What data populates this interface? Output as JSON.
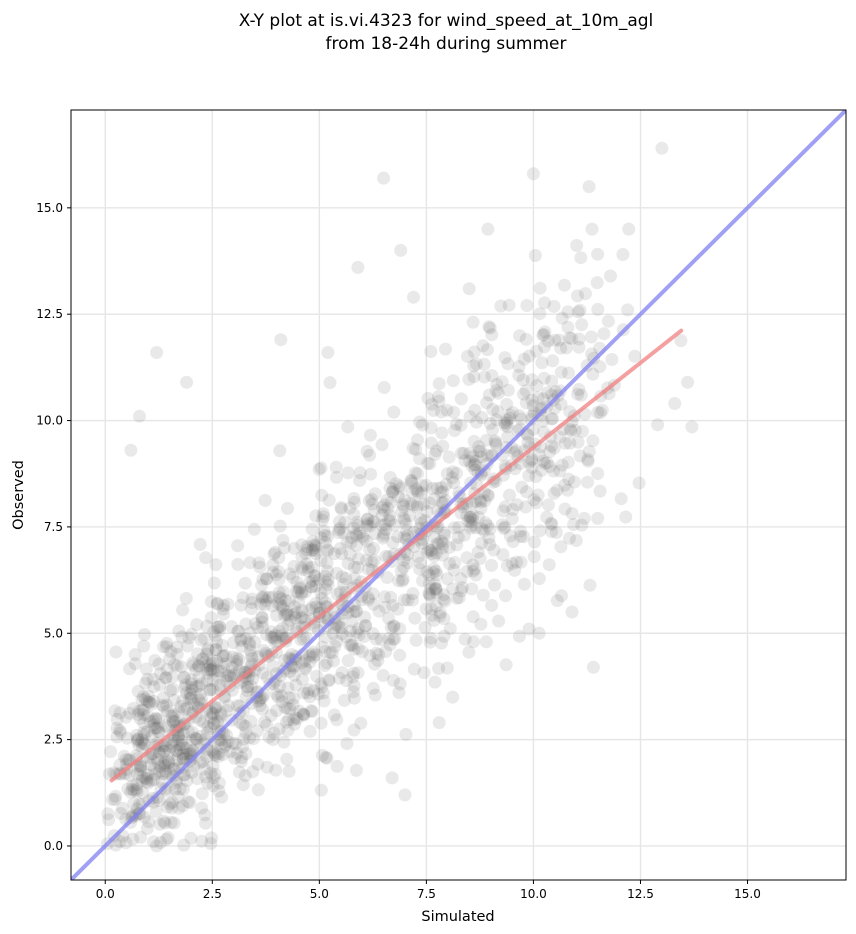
{
  "chart_data": {
    "type": "scatter",
    "title": "X-Y plot at is.vi.4323 for wind_speed_at_10m_agl",
    "subtitle": "from 18-24h during summer",
    "xlabel": "Simulated",
    "ylabel": "Observed",
    "xlim": [
      -0.8,
      17.3
    ],
    "ylim": [
      -0.8,
      17.3
    ],
    "xticks": [
      "0.0",
      "2.5",
      "5.0",
      "7.5",
      "10.0",
      "12.5",
      "15.0"
    ],
    "yticks": [
      "0.0",
      "2.5",
      "5.0",
      "7.5",
      "10.0",
      "12.5",
      "15.0"
    ],
    "grid": true,
    "point_count": 1600,
    "fit_line": {
      "slope": 0.795,
      "intercept": 1.42,
      "x_range": [
        0.15,
        13.45
      ]
    },
    "identity_line": true,
    "notable_points": [
      {
        "x": 13.0,
        "y": 16.4
      },
      {
        "x": 10.0,
        "y": 15.8
      },
      {
        "x": 11.3,
        "y": 15.5
      },
      {
        "x": 6.5,
        "y": 15.7
      },
      {
        "x": 6.9,
        "y": 14.0
      },
      {
        "x": 5.9,
        "y": 13.6
      },
      {
        "x": 7.2,
        "y": 12.9
      },
      {
        "x": 8.5,
        "y": 13.1
      },
      {
        "x": 12.2,
        "y": 12.6
      },
      {
        "x": 4.1,
        "y": 11.9
      },
      {
        "x": 1.2,
        "y": 11.6
      },
      {
        "x": 5.2,
        "y": 11.6
      },
      {
        "x": 13.3,
        "y": 10.4
      },
      {
        "x": 13.6,
        "y": 10.9
      },
      {
        "x": 12.9,
        "y": 9.9
      },
      {
        "x": 11.5,
        "y": 7.7
      },
      {
        "x": 11.4,
        "y": 4.2
      },
      {
        "x": 10.9,
        "y": 5.5
      },
      {
        "x": 9.9,
        "y": 5.1
      },
      {
        "x": 8.9,
        "y": 4.8
      },
      {
        "x": 0.8,
        "y": 10.1
      },
      {
        "x": 0.6,
        "y": 9.3
      },
      {
        "x": 1.9,
        "y": 10.9
      },
      {
        "x": 1.2,
        "y": 0.0
      },
      {
        "x": 7.0,
        "y": 1.2
      },
      {
        "x": 6.7,
        "y": 1.6
      },
      {
        "x": 7.8,
        "y": 2.9
      }
    ],
    "colors": {
      "points": "#555555",
      "fit_line": "#f08080",
      "identity_line": "#8080f0",
      "grid": "#e6e6e6"
    }
  }
}
